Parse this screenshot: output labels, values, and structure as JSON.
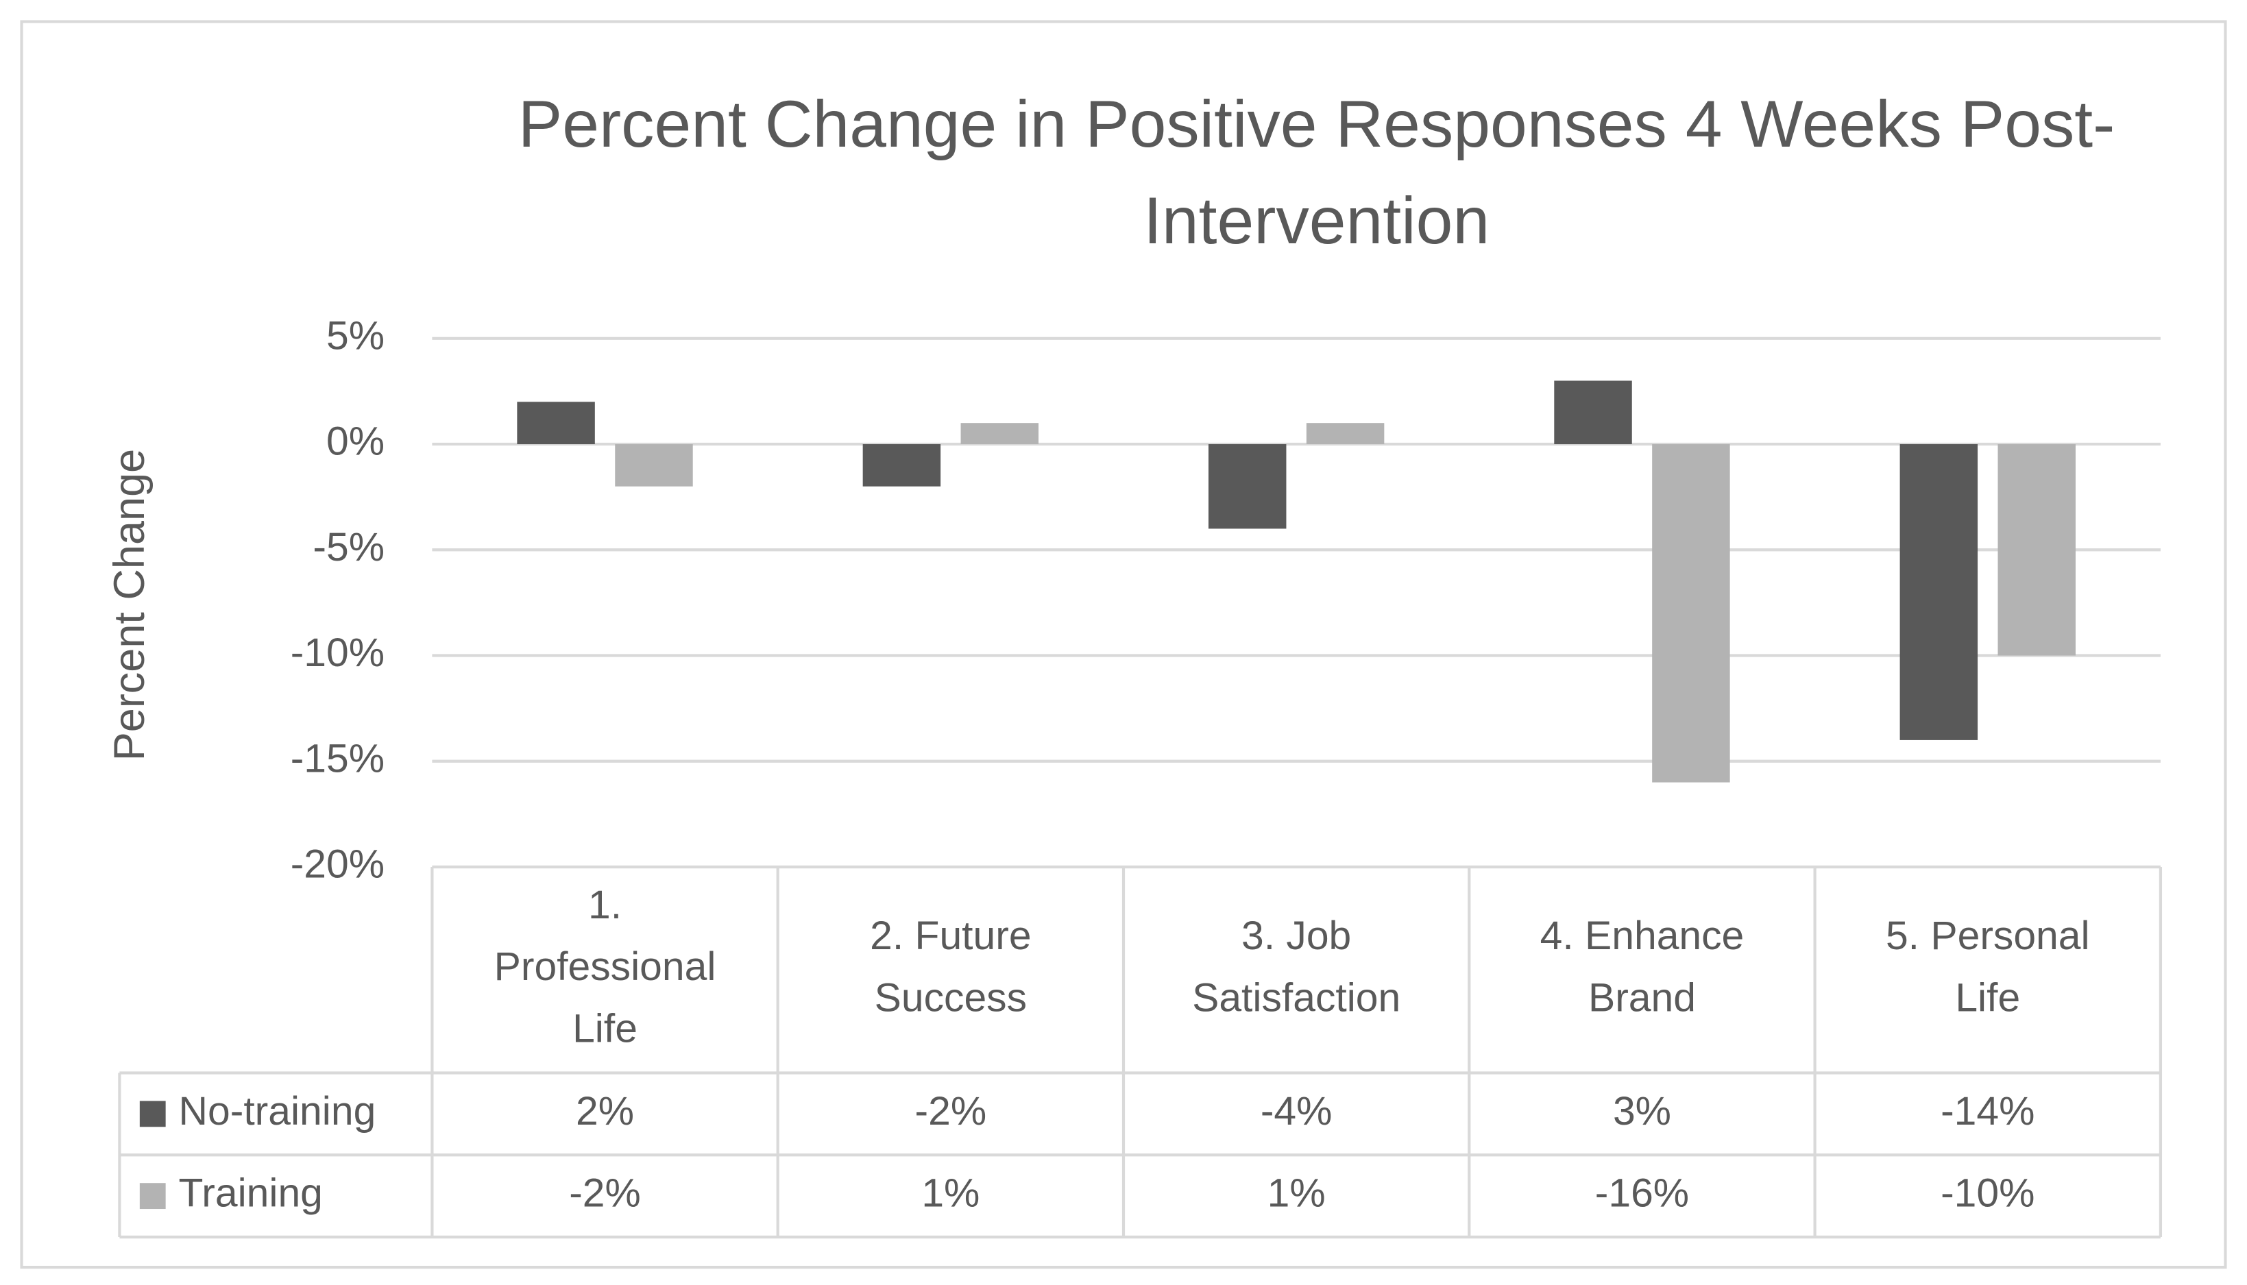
{
  "chart_data": {
    "type": "bar",
    "title": "Percent Change in Positive Responses 4 Weeks Post-Intervention",
    "y_label": "Percent Change",
    "categories": [
      "1. Professional Life",
      "2. Future Success",
      "3. Job Satisfaction",
      "4. Enhance Brand",
      "5. Personal Life"
    ],
    "series": [
      {
        "name": "No-training",
        "color": "#595959",
        "values": [
          2,
          -2,
          -4,
          3,
          -14
        ],
        "value_labels": [
          "2%",
          "-2%",
          "-4%",
          "3%",
          "-14%"
        ]
      },
      {
        "name": "Training",
        "color": "#b3b3b3",
        "values": [
          -2,
          1,
          1,
          -16,
          -10
        ],
        "value_labels": [
          "-2%",
          "1%",
          "1%",
          "-16%",
          "-10%"
        ]
      }
    ],
    "ylim": [
      -20,
      5
    ],
    "yticks": [
      {
        "value": 5,
        "label": "5%"
      },
      {
        "value": 0,
        "label": "0%"
      },
      {
        "value": -5,
        "label": "-5%"
      },
      {
        "value": -10,
        "label": "-10%"
      },
      {
        "value": -15,
        "label": "-15%"
      },
      {
        "value": -20,
        "label": "-20%"
      }
    ],
    "grid": true
  }
}
